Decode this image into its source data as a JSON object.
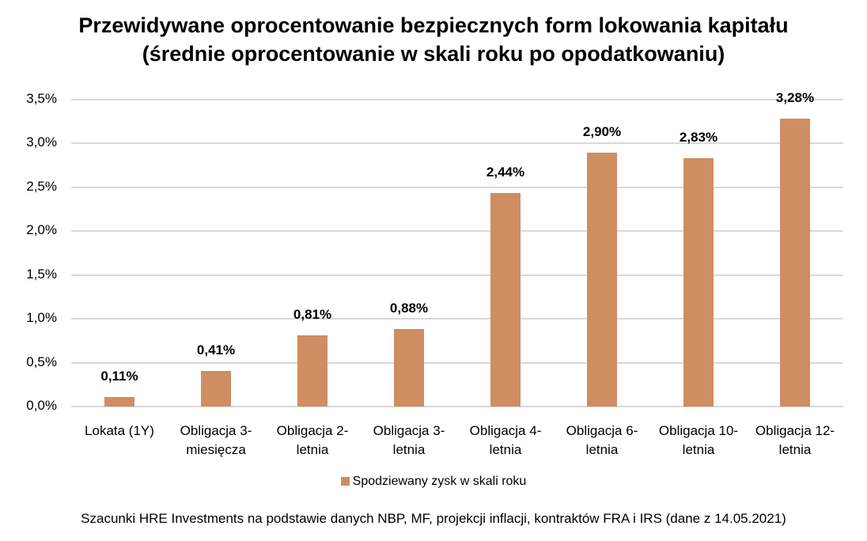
{
  "title_line1": "Przewidywane oprocentowanie bezpiecznych form lokowania kapitału",
  "title_line2": "(średnie oprocentowanie w skali roku po opodatkowaniu)",
  "legend_label": "Spodziewany zysk w skali roku",
  "source": "Szacunki HRE Investments na podstawie danych NBP, MF, projekcji inflacji, kontraktów FRA i IRS (dane z 14.05.2021)",
  "bar_color": "#cf8d62",
  "y_ticks": [
    "0,0%",
    "0,5%",
    "1,0%",
    "1,5%",
    "2,0%",
    "2,5%",
    "3,0%",
    "3,5%"
  ],
  "categories": [
    {
      "line1": "Lokata (1Y)",
      "line2": "",
      "label": "0,11%"
    },
    {
      "line1": "Obligacja 3-",
      "line2": "miesięcza",
      "label": "0,41%"
    },
    {
      "line1": "Obligacja 2-",
      "line2": "letnia",
      "label": "0,81%"
    },
    {
      "line1": "Obligacja 3-",
      "line2": "letnia",
      "label": "0,88%"
    },
    {
      "line1": "Obligacja 4-",
      "line2": "letnia",
      "label": "2,44%"
    },
    {
      "line1": "Obligacja 6-",
      "line2": "letnia",
      "label": "2,90%"
    },
    {
      "line1": "Obligacja 10-",
      "line2": "letnia",
      "label": "2,83%"
    },
    {
      "line1": "Obligacja 12-",
      "line2": "letnia",
      "label": "3,28%"
    }
  ],
  "chart_data": {
    "type": "bar",
    "title": "Przewidywane oprocentowanie bezpiecznych form lokowania kapitału (średnie oprocentowanie w skali roku po opodatkowaniu)",
    "categories": [
      "Lokata (1Y)",
      "Obligacja 3-miesięcza",
      "Obligacja 2-letnia",
      "Obligacja 3-letnia",
      "Obligacja 4-letnia",
      "Obligacja 6-letnia",
      "Obligacja 10-letnia",
      "Obligacja 12-letnia"
    ],
    "series": [
      {
        "name": "Spodziewany zysk w skali roku",
        "values": [
          0.11,
          0.41,
          0.81,
          0.88,
          2.44,
          2.9,
          2.83,
          3.28
        ]
      }
    ],
    "xlabel": "",
    "ylabel": "",
    "ylim": [
      0,
      3.5
    ],
    "y_tick_step": 0.5,
    "grid": true,
    "legend_position": "bottom",
    "unit": "%"
  }
}
